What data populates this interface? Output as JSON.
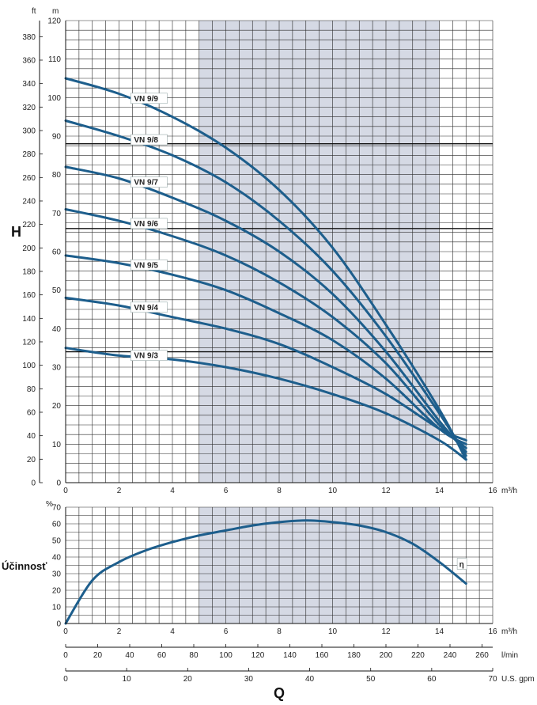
{
  "colors": {
    "curve": "#1d5e8c",
    "band": "#d5d9e4",
    "grid": "#2a2a2a"
  },
  "labels": {
    "h_axis": "H",
    "q_axis": "Q",
    "efficiency": "Účinnosť",
    "eta": "η",
    "ft": "ft",
    "m": "m",
    "percent": "%",
    "m3h_top": "m³/h",
    "m3h_bottom": "m³/h",
    "lmin": "l/min",
    "usgpm": "U.S. gpm"
  },
  "chart_data": [
    {
      "type": "line",
      "title": "",
      "xlabel": "Q",
      "ylabel": "H",
      "x_unit": "m³/h",
      "y_unit": "m",
      "xlim": [
        0,
        16
      ],
      "ylim": [
        0,
        120
      ],
      "x_ticks": [
        0,
        2,
        4,
        6,
        8,
        10,
        12,
        14,
        16
      ],
      "y_ticks": [
        0,
        10,
        20,
        30,
        40,
        50,
        60,
        70,
        80,
        90,
        100,
        110,
        120
      ],
      "secondary_y_unit": "ft",
      "secondary_y_ticks": [
        0,
        20,
        40,
        60,
        80,
        100,
        120,
        140,
        160,
        180,
        200,
        220,
        240,
        260,
        280,
        300,
        320,
        340,
        360,
        380
      ],
      "highlight_band_x": [
        5,
        14
      ],
      "grid": true,
      "series": [
        {
          "name": "VN 9/9",
          "x": [
            0,
            2,
            4,
            6,
            8,
            10,
            12,
            14,
            15
          ],
          "y": [
            105,
            101,
            95,
            87,
            76,
            61,
            41,
            19,
            6
          ]
        },
        {
          "name": "VN 9/8",
          "x": [
            0,
            2,
            4,
            6,
            8,
            10,
            12,
            14,
            15
          ],
          "y": [
            94,
            90,
            85,
            78,
            68,
            55,
            38,
            18,
            7
          ]
        },
        {
          "name": "VN 9/7",
          "x": [
            0,
            2,
            4,
            6,
            8,
            10,
            12,
            14,
            15
          ],
          "y": [
            82,
            79,
            74,
            68,
            60,
            49,
            34,
            16,
            8
          ]
        },
        {
          "name": "VN 9/6",
          "x": [
            0,
            2,
            4,
            6,
            8,
            10,
            12,
            14,
            15
          ],
          "y": [
            71,
            68,
            64,
            59,
            52,
            43,
            31,
            15,
            9
          ]
        },
        {
          "name": "VN 9/5",
          "x": [
            0,
            2,
            4,
            6,
            8,
            10,
            12,
            14,
            15
          ],
          "y": [
            59,
            57,
            54,
            50,
            44,
            37,
            27,
            14,
            10
          ]
        },
        {
          "name": "VN 9/4",
          "x": [
            0,
            2,
            4,
            6,
            8,
            10,
            12,
            14,
            15
          ],
          "y": [
            48,
            46,
            43,
            40,
            36,
            30,
            23,
            14,
            11
          ]
        },
        {
          "name": "VN 9/3",
          "x": [
            0,
            2,
            4,
            6,
            8,
            10,
            12,
            14,
            15
          ],
          "y": [
            35,
            33,
            32,
            30,
            27,
            23,
            18,
            11,
            6
          ]
        }
      ],
      "reference_lines_y": [
        88,
        66,
        34
      ]
    },
    {
      "type": "line",
      "title": "",
      "xlabel": "Q",
      "ylabel": "Účinnosť",
      "x_unit": "m³/h",
      "y_unit": "%",
      "xlim": [
        0,
        16
      ],
      "ylim": [
        0,
        70
      ],
      "x_ticks": [
        0,
        2,
        4,
        6,
        8,
        10,
        12,
        14,
        16
      ],
      "y_ticks": [
        0,
        10,
        20,
        30,
        40,
        50,
        60,
        70
      ],
      "highlight_band_x": [
        5,
        14
      ],
      "grid": true,
      "series": [
        {
          "name": "η",
          "x": [
            0,
            1,
            2,
            3,
            4,
            5,
            6,
            7,
            8,
            9,
            10,
            11,
            12,
            13,
            14,
            15
          ],
          "y": [
            0,
            26,
            37,
            44,
            49,
            53,
            56,
            59,
            61,
            62,
            61,
            59,
            55,
            48,
            37,
            24
          ]
        }
      ]
    }
  ],
  "extra_axes": [
    {
      "unit": "l/min",
      "ticks": [
        0,
        20,
        40,
        60,
        80,
        100,
        120,
        140,
        160,
        180,
        200,
        220,
        240,
        260
      ]
    },
    {
      "unit": "U.S. gpm",
      "ticks": [
        0,
        10,
        20,
        30,
        40,
        50,
        60,
        70
      ]
    }
  ]
}
